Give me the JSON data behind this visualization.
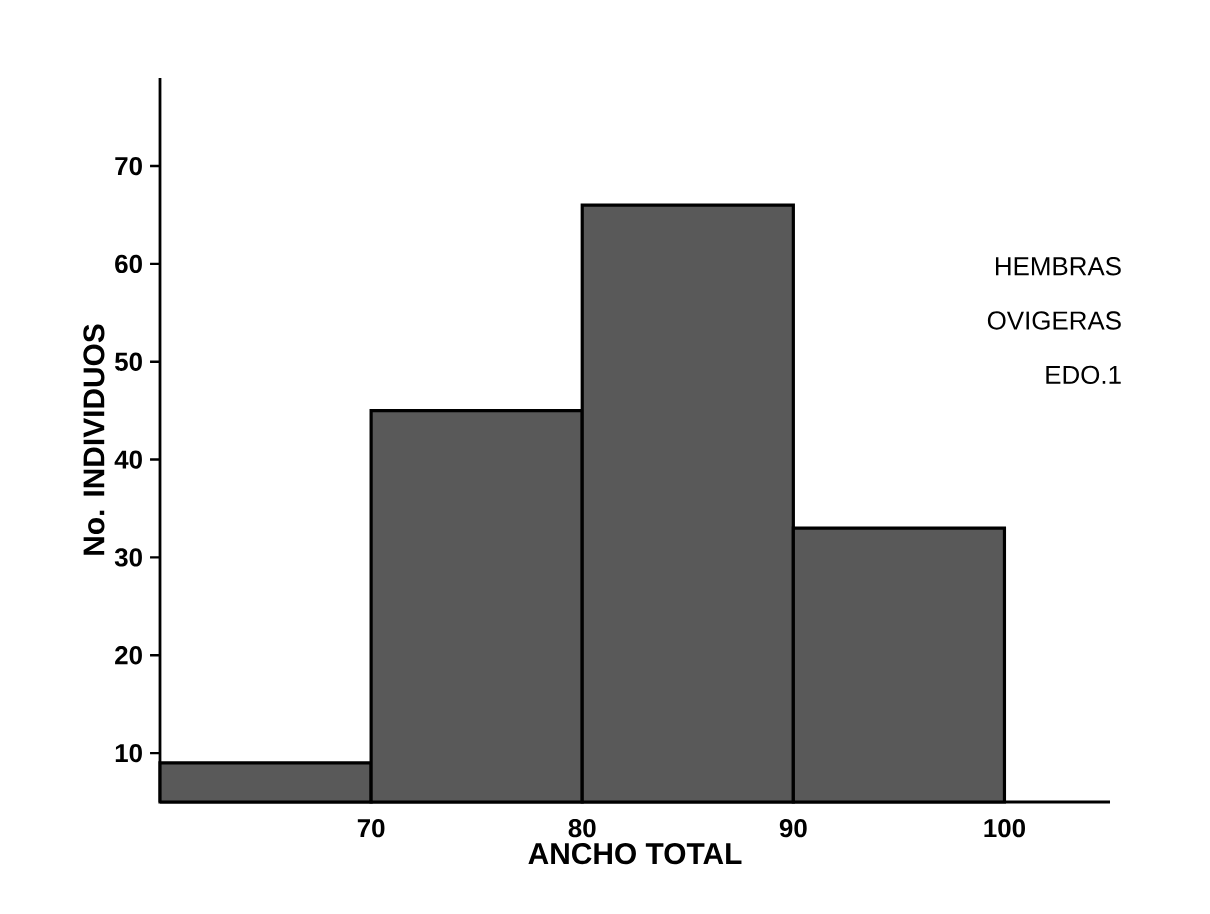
{
  "chart_data": {
    "type": "histogram",
    "xlabel": "ANCHO TOTAL",
    "ylabel": "No. INDIVIDUOS",
    "bins": [
      60,
      70,
      80,
      90,
      100
    ],
    "values": [
      9,
      45,
      66,
      33
    ],
    "color": "#595959",
    "xlim": [
      60,
      105
    ],
    "ylim": [
      5,
      79
    ],
    "xticks": [
      70,
      80,
      90,
      100
    ],
    "yticks": [
      10,
      20,
      30,
      40,
      50,
      60,
      70
    ],
    "grid": false,
    "annotations": [
      "HEMBRAS",
      "OVIGERAS",
      "EDO.1"
    ]
  }
}
